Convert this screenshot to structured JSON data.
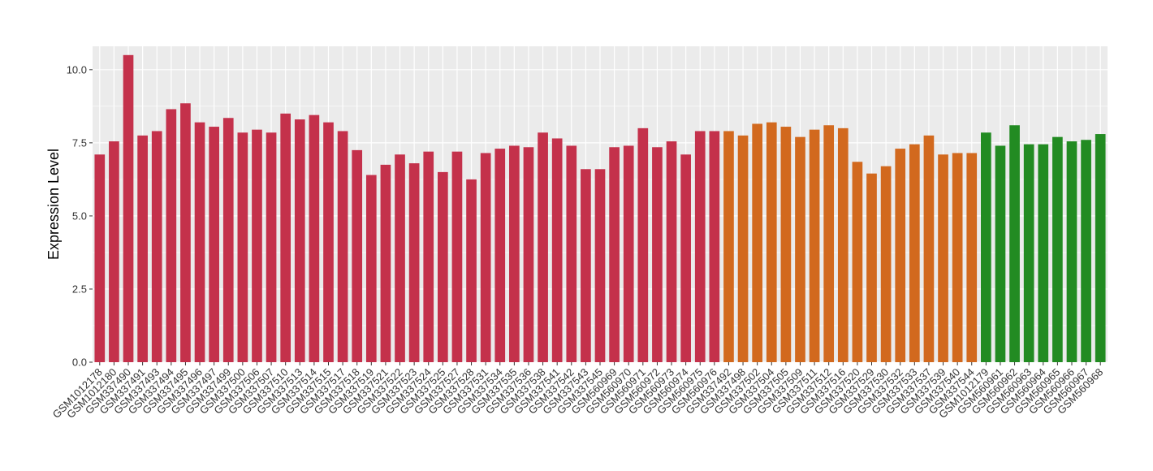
{
  "chart_data": {
    "type": "bar",
    "title": "",
    "xlabel": "",
    "ylabel": "Expression Level",
    "ylim": [
      0,
      10.8
    ],
    "yticks": [
      0.0,
      2.5,
      5.0,
      7.5,
      10.0
    ],
    "ytick_labels": [
      "0.0",
      "2.5",
      "5.0",
      "7.5",
      "10.0"
    ],
    "grid": true,
    "legend": "none",
    "background_color": "#ebebeb",
    "grid_color": "#ffffff",
    "group_colors": [
      "#c4314b",
      "#d2691e",
      "#228b22"
    ],
    "categories": [
      "GSM1012178",
      "GSM1012180",
      "GSM337490",
      "GSM337491",
      "GSM337493",
      "GSM337494",
      "GSM337495",
      "GSM337496",
      "GSM337497",
      "GSM337499",
      "GSM337500",
      "GSM337506",
      "GSM337507",
      "GSM337510",
      "GSM337513",
      "GSM337514",
      "GSM337515",
      "GSM337517",
      "GSM337518",
      "GSM337519",
      "GSM337521",
      "GSM337522",
      "GSM337523",
      "GSM337524",
      "GSM337525",
      "GSM337527",
      "GSM337528",
      "GSM337531",
      "GSM337534",
      "GSM337535",
      "GSM337536",
      "GSM337538",
      "GSM337541",
      "GSM337542",
      "GSM337543",
      "GSM337545",
      "GSM560969",
      "GSM560970",
      "GSM560971",
      "GSM560972",
      "GSM560973",
      "GSM560974",
      "GSM560975",
      "GSM560976",
      "GSM337492",
      "GSM337498",
      "GSM337502",
      "GSM337504",
      "GSM337505",
      "GSM337509",
      "GSM337511",
      "GSM337512",
      "GSM337516",
      "GSM337520",
      "GSM337529",
      "GSM337530",
      "GSM337532",
      "GSM337533",
      "GSM337537",
      "GSM337539",
      "GSM337540",
      "GSM337544",
      "GSM1012179",
      "GSM560961",
      "GSM560962",
      "GSM560963",
      "GSM560964",
      "GSM560965",
      "GSM560966",
      "GSM560967",
      "GSM560968"
    ],
    "values": [
      7.1,
      7.55,
      10.5,
      7.75,
      7.9,
      8.65,
      8.85,
      8.2,
      8.05,
      8.35,
      7.85,
      7.95,
      7.85,
      8.5,
      8.3,
      8.45,
      8.2,
      7.9,
      7.25,
      6.4,
      6.75,
      7.1,
      6.8,
      7.2,
      6.5,
      7.2,
      6.25,
      7.15,
      7.3,
      7.4,
      7.35,
      7.85,
      7.65,
      7.4,
      6.6,
      6.6,
      7.35,
      7.4,
      8.0,
      7.35,
      7.55,
      7.1,
      7.9,
      7.9,
      7.9,
      7.75,
      8.15,
      8.2,
      8.05,
      7.7,
      7.95,
      8.1,
      8.0,
      6.85,
      6.45,
      6.7,
      7.3,
      7.45,
      7.75,
      7.1,
      7.15,
      7.15,
      7.85,
      7.4,
      8.1,
      7.45,
      7.45,
      7.7,
      7.55,
      7.6,
      7.8
    ],
    "groups": [
      0,
      0,
      0,
      0,
      0,
      0,
      0,
      0,
      0,
      0,
      0,
      0,
      0,
      0,
      0,
      0,
      0,
      0,
      0,
      0,
      0,
      0,
      0,
      0,
      0,
      0,
      0,
      0,
      0,
      0,
      0,
      0,
      0,
      0,
      0,
      0,
      0,
      0,
      0,
      0,
      0,
      0,
      0,
      0,
      1,
      1,
      1,
      1,
      1,
      1,
      1,
      1,
      1,
      1,
      1,
      1,
      1,
      1,
      1,
      1,
      1,
      1,
      2,
      2,
      2,
      2,
      2,
      2,
      2,
      2,
      2
    ]
  }
}
